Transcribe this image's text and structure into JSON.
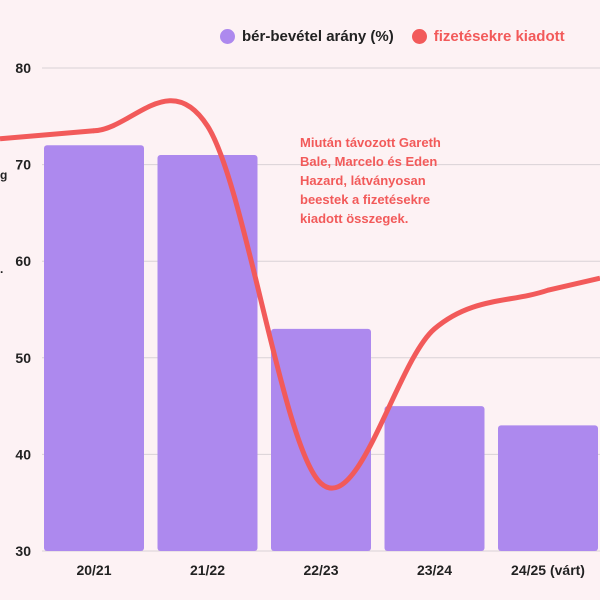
{
  "legend": {
    "items": [
      {
        "label": "bér-bevétel arány (%)",
        "color": "#ad89ee"
      },
      {
        "label": "fizetésekre kiadott",
        "color": "#f25a5a"
      }
    ]
  },
  "annotation": "Miután távozott Gareth Bale, Marcelo és Eden Hazard, látványosan beestek a fizetésekre kiadott összegek.",
  "side_fragments": [
    "g",
    "."
  ],
  "chart_data": {
    "type": "bar",
    "categories": [
      "20/21",
      "21/22",
      "22/23",
      "23/24",
      "24/25 (várt)"
    ],
    "ylim": [
      30,
      80
    ],
    "yticks": [
      30,
      40,
      50,
      60,
      70,
      80
    ],
    "grid": true,
    "legend_position": "top",
    "series": [
      {
        "name": "bér-bevétel arány (%)",
        "type": "bar",
        "color": "#ad89ee",
        "values": [
          72,
          71,
          53,
          45,
          43
        ]
      },
      {
        "name": "fizetésekre kiadott",
        "type": "line",
        "color": "#f25a5a",
        "smooth": true,
        "values": [
          73.5,
          74,
          37,
          53,
          57
        ]
      }
    ]
  }
}
